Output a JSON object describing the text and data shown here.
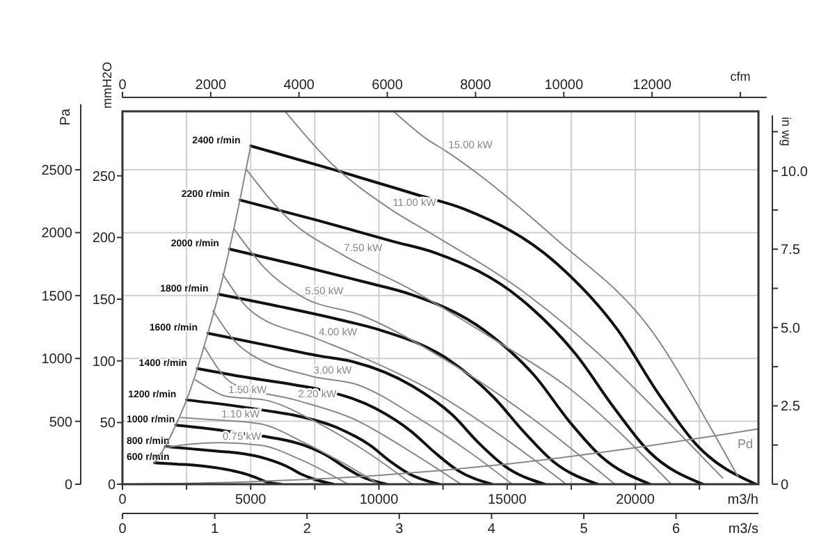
{
  "chart_data": {
    "type": "line",
    "xlabel": "m3/h",
    "ylabel": "Pa",
    "y2label": "mmH2O",
    "y3label": "in wg",
    "x2label": "cfm",
    "xlim": [
      0,
      24800
    ],
    "xticks": [
      0,
      {
        "value": 2500,
        "label": null
      },
      5000,
      {
        "value": 7500,
        "label": null
      },
      10000,
      {
        "value": 12500,
        "label": null
      },
      15000,
      {
        "value": 17500,
        "label": null
      },
      20000,
      {
        "value": 22500,
        "label": null
      }
    ],
    "x2lim": [
      0,
      14600
    ],
    "x2ticks": [
      0,
      2000,
      4000,
      6000,
      8000,
      10000,
      12000,
      {
        "value": 14000,
        "label": null
      }
    ],
    "ylim": [
      0,
      2965
    ],
    "yticks": [
      0,
      500,
      1000,
      1500,
      2000,
      2500
    ],
    "y2lim": [
      0,
      302.3
    ],
    "y2ticks": [
      0,
      50,
      100,
      150,
      200,
      250
    ],
    "y3lim": [
      0,
      11.9
    ],
    "y3ticks": [
      0,
      {
        "value": 1.25,
        "label": null
      },
      {
        "value": 2.5,
        "label": "2.5"
      },
      {
        "value": 3.75,
        "label": null
      },
      {
        "value": 5,
        "label": "5.0"
      },
      {
        "value": 6.25,
        "label": null
      },
      {
        "value": 7.5,
        "label": "7.5"
      },
      {
        "value": 8.75,
        "label": null
      },
      {
        "value": 10,
        "label": "10.0"
      },
      {
        "value": 11.25,
        "label": null
      }
    ],
    "grid": true,
    "annotations": [
      "0",
      "1",
      "2",
      "3",
      "4",
      "5",
      "6",
      "m3/s"
    ],
    "series": [
      {
        "name": "2400 r/min",
        "color": "#111111",
        "x": [
          5000,
          8260,
          11520,
          13300,
          16960,
          19300,
          20900,
          22400,
          24700
        ],
        "values": [
          2690,
          2500,
          2300,
          2190,
          1750,
          1230,
          720,
          310,
          0
        ]
      },
      {
        "name": "2200 r/min",
        "color": "#111111",
        "x": [
          4580,
          7570,
          10560,
          12190,
          15550,
          17690,
          19160,
          20530,
          22640
        ],
        "values": [
          2260,
          2100,
          1930,
          1840,
          1470,
          1030,
          610,
          260,
          0
        ]
      },
      {
        "name": "2000 r/min",
        "color": "#111111",
        "x": [
          4170,
          6880,
          9600,
          11080,
          14130,
          16080,
          17420,
          18670,
          20580
        ],
        "values": [
          1870,
          1740,
          1600,
          1520,
          1220,
          860,
          500,
          220,
          0
        ]
      },
      {
        "name": "1800 r/min",
        "color": "#111111",
        "x": [
          3750,
          6200,
          8640,
          9980,
          12720,
          14480,
          15680,
          16800,
          18530
        ],
        "values": [
          1510,
          1410,
          1300,
          1230,
          990,
          690,
          410,
          180,
          0
        ]
      },
      {
        "name": "1600 r/min",
        "color": "#111111",
        "x": [
          3330,
          5510,
          7680,
          8870,
          11310,
          12870,
          13930,
          14930,
          16470
        ],
        "values": [
          1200,
          1110,
          1020,
          980,
          780,
          550,
          320,
          140,
          0
        ]
      },
      {
        "name": "1400 r/min",
        "color": "#111111",
        "x": [
          2920,
          4820,
          6720,
          7760,
          9890,
          11260,
          12190,
          13070,
          14410
        ],
        "values": [
          920,
          850,
          790,
          750,
          600,
          420,
          250,
          110,
          0
        ]
      },
      {
        "name": "1200 r/min",
        "color": "#111111",
        "x": [
          2500,
          4130,
          5760,
          6650,
          8480,
          9650,
          10450,
          11200,
          12350
        ],
        "values": [
          670,
          630,
          580,
          550,
          440,
          310,
          180,
          80,
          0
        ]
      },
      {
        "name": "1000 r/min",
        "color": "#111111",
        "x": [
          2080,
          3440,
          4800,
          5540,
          7070,
          8040,
          8710,
          9330,
          10290
        ],
        "values": [
          470,
          440,
          400,
          380,
          310,
          220,
          130,
          60,
          0
        ]
      },
      {
        "name": "800 r/min",
        "color": "#111111",
        "x": [
          1670,
          2750,
          3840,
          4430,
          5650,
          6430,
          6970,
          7470,
          8230
        ],
        "values": [
          300,
          280,
          260,
          250,
          200,
          140,
          80,
          40,
          0
        ]
      },
      {
        "name": "600 r/min",
        "color": "#111111",
        "x": [
          1250,
          2070,
          2880,
          3330,
          4240,
          4830,
          5230,
          5600,
          6180
        ],
        "values": [
          170,
          160,
          150,
          140,
          110,
          80,
          50,
          20,
          0
        ]
      },
      {
        "name": "15.00 kW",
        "color": "#888888",
        "x": [
          10600,
          11900,
          12600,
          16960,
          20600,
          23100,
          24000
        ],
        "values": [
          2960,
          2740,
          2650,
          1940,
          1230,
          390,
          60
        ]
      },
      {
        "name": "11.00 kW",
        "color": "#888888",
        "x": [
          6360,
          8100,
          10430,
          12230,
          15500,
          18500,
          21000,
          23400
        ],
        "values": [
          2960,
          2560,
          2190,
          1970,
          1550,
          1050,
          550,
          50
        ]
      },
      {
        "name": "7.50 kW",
        "color": "#888888",
        "x": [
          4840,
          6470,
          8530,
          11140,
          14500,
          17500,
          21400
        ],
        "values": [
          2500,
          2110,
          1830,
          1560,
          1150,
          750,
          0
        ]
      },
      {
        "name": "5.50 kW",
        "color": "#888888",
        "x": [
          4350,
          5540,
          7010,
          9350,
          12500,
          15800,
          19200
        ],
        "values": [
          2030,
          1720,
          1490,
          1340,
          1000,
          550,
          0
        ]
      },
      {
        "name": "4.00 kW",
        "color": "#888888",
        "x": [
          3910,
          5000,
          7550,
          9350,
          12000,
          14800,
          17300
        ],
        "values": [
          1670,
          1380,
          1160,
          1010,
          750,
          380,
          0
        ]
      },
      {
        "name": "3.00 kW",
        "color": "#888888",
        "x": [
          3530,
          4620,
          7340,
          9180,
          11500,
          13500,
          15200
        ],
        "values": [
          1380,
          1090,
          860,
          790,
          530,
          260,
          0
        ]
      },
      {
        "name": "2.20 kW",
        "color": "#888888",
        "x": [
          3200,
          4300,
          6740,
          9000,
          11300,
          13200
        ],
        "values": [
          1090,
          800,
          670,
          520,
          250,
          0
        ]
      },
      {
        "name": "1.50 kW",
        "color": "#888888",
        "x": [
          2830,
          3400,
          4020,
          5540,
          7500,
          9500,
          11300
        ],
        "values": [
          830,
          760,
          700,
          670,
          500,
          260,
          0
        ]
      },
      {
        "name": "1.10 kW",
        "color": "#888888",
        "x": [
          2280,
          3000,
          3750,
          5380,
          7000,
          8500,
          10000
        ],
        "values": [
          530,
          520,
          510,
          480,
          340,
          180,
          0
        ]
      },
      {
        "name": "0.75 kW",
        "color": "#888888",
        "x": [
          1630,
          2700,
          3800,
          5380,
          6900,
          8800
        ],
        "values": [
          290,
          320,
          330,
          310,
          200,
          0
        ]
      },
      {
        "name": "Pd",
        "color": "#888888",
        "x": [
          0,
          5000,
          10000,
          15000,
          20000,
          24800
        ],
        "values": [
          0,
          20,
          70,
          160,
          290,
          440
        ]
      },
      {
        "color": "#888888",
        "x": [
          1250,
          1670,
          2080,
          2500,
          2920,
          3330,
          3750,
          4170,
          4580,
          5000
        ],
        "values": [
          170,
          300,
          470,
          670,
          920,
          1200,
          1510,
          1870,
          2260,
          2690
        ]
      }
    ]
  }
}
